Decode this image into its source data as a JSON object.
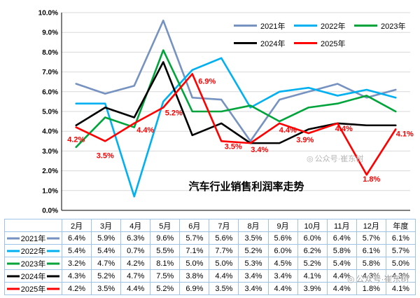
{
  "chart_data": {
    "type": "line",
    "title": "汽车行业销售利润率走势",
    "categories": [
      "2月",
      "3月",
      "4月",
      "5月",
      "6月",
      "7月",
      "8月",
      "9月",
      "10月",
      "11月",
      "12月",
      "年度"
    ],
    "y_axis": {
      "min": 0,
      "max": 10,
      "step": 1,
      "ticks": [
        "10.0%",
        "9.0%",
        "8.0%",
        "7.0%",
        "6.0%",
        "5.0%",
        "4.0%",
        "3.0%",
        "2.0%",
        "1.0%",
        "0.0%"
      ]
    },
    "grid": true,
    "legend_position": "top-right",
    "series": [
      {
        "name": "2021年",
        "color": "#7692c0",
        "values": [
          6.4,
          5.9,
          6.3,
          9.6,
          5.7,
          5.6,
          3.5,
          5.6,
          6.0,
          6.4,
          5.7,
          6.1
        ]
      },
      {
        "name": "2022年",
        "color": "#00b0f0",
        "values": [
          5.4,
          5.4,
          0.7,
          5.5,
          7.1,
          7.7,
          5.2,
          6.0,
          6.2,
          5.8,
          6.1,
          5.7
        ]
      },
      {
        "name": "2023年",
        "color": "#00a43b",
        "values": [
          3.2,
          4.7,
          4.2,
          8.1,
          5.0,
          5.0,
          5.3,
          4.5,
          5.2,
          5.4,
          5.8,
          5.0
        ]
      },
      {
        "name": "2024年",
        "color": "#000000",
        "values": [
          4.3,
          5.2,
          4.7,
          7.5,
          3.8,
          4.4,
          3.4,
          3.4,
          4.1,
          4.4,
          4.3,
          4.3
        ]
      },
      {
        "name": "2025年",
        "color": "#ff0000",
        "values": [
          4.2,
          3.5,
          4.4,
          5.2,
          6.9,
          3.5,
          3.4,
          4.4,
          3.9,
          4.4,
          1.8,
          4.1
        ]
      }
    ],
    "annotated_series": "2025年",
    "annotations": [
      "4.2%",
      "3.5%",
      "4.4%",
      "5.2%",
      "6.9%",
      "3.5%",
      "3.4%",
      "4.4%",
      "3.9%",
      "4.4%",
      "1.8%",
      "4.1%"
    ]
  },
  "watermark": {
    "icon_glyph": "◎",
    "text": "公众号·崔东树"
  }
}
